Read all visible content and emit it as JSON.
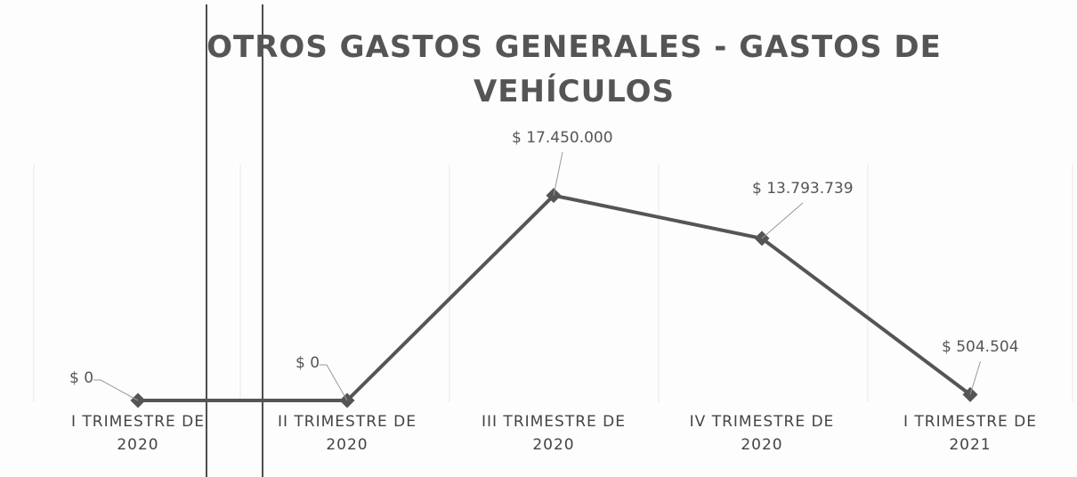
{
  "chart_data": {
    "type": "line",
    "title": "OTROS GASTOS GENERALES  - GASTOS DE VEHÍCULOS",
    "categories": [
      "I TRIMESTRE DE 2020",
      "II TRIMESTRE DE 2020",
      "III TRIMESTRE DE 2020",
      "IV TRIMESTRE DE 2020",
      "I TRIMESTRE DE 2021"
    ],
    "series": [
      {
        "name": "GASTOS DE VEHÍCULOS",
        "color": "#555555",
        "values": [
          0,
          0,
          17450000,
          13793739,
          504504
        ],
        "value_labels": [
          "$ 0",
          "$ 0",
          "$ 17.450.000",
          "$ 13.793.739",
          "$ 504.504"
        ]
      }
    ],
    "ylim": [
      0,
      20000000
    ]
  }
}
